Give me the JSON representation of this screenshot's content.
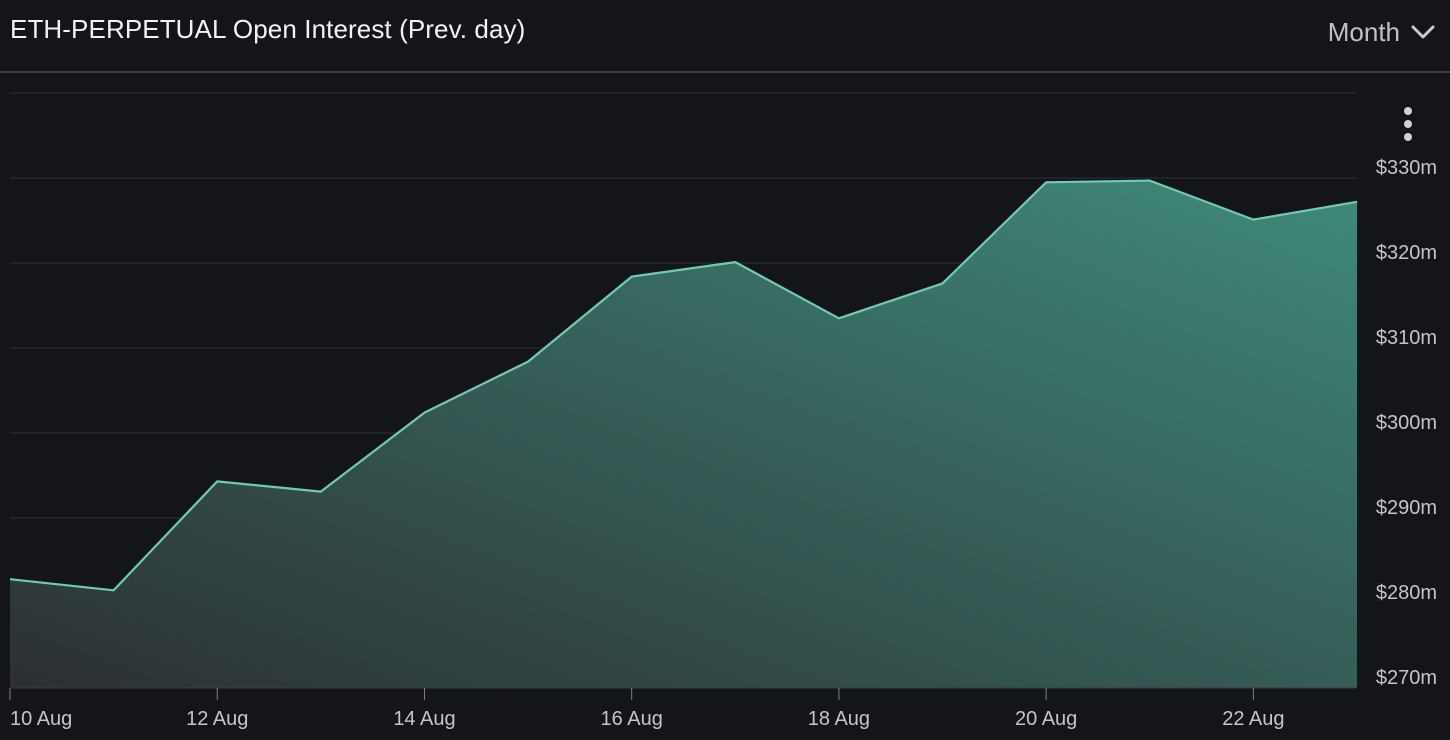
{
  "header": {
    "title": "ETH-PERPETUAL Open Interest (Prev. day)",
    "range_selected": "Month"
  },
  "colors": {
    "background": "#141518",
    "line": "#6fcbb6",
    "area_top": "#3f8a7a",
    "area_bottom": "#2c2f33",
    "grid": "#2f3135"
  },
  "icons": {
    "range_dropdown": "chevron-down-icon",
    "menu": "more-vertical-icon"
  },
  "chart_data": {
    "type": "area",
    "x": [
      "10 Aug",
      "11 Aug",
      "12 Aug",
      "13 Aug",
      "14 Aug",
      "15 Aug",
      "16 Aug",
      "17 Aug",
      "18 Aug",
      "19 Aug",
      "20 Aug",
      "21 Aug",
      "22 Aug",
      "23 Aug"
    ],
    "series": [
      {
        "values": [
          282.8,
          281.5,
          294.3,
          293.1,
          302.4,
          308.4,
          318.4,
          320.1,
          313.5,
          317.6,
          329.5,
          329.7,
          325.1,
          327.2
        ]
      }
    ],
    "x_tick_labels": [
      "10 Aug",
      "12 Aug",
      "14 Aug",
      "16 Aug",
      "18 Aug",
      "20 Aug",
      "22 Aug"
    ],
    "y_ticks": [
      270,
      280,
      290,
      300,
      310,
      320,
      330
    ],
    "y_tick_labels": [
      "$270m",
      "$280m",
      "$290m",
      "$300m",
      "$310m",
      "$320m",
      "$330m"
    ],
    "ylim": [
      270,
      340
    ],
    "y_axis_side": "right",
    "grid": true
  }
}
